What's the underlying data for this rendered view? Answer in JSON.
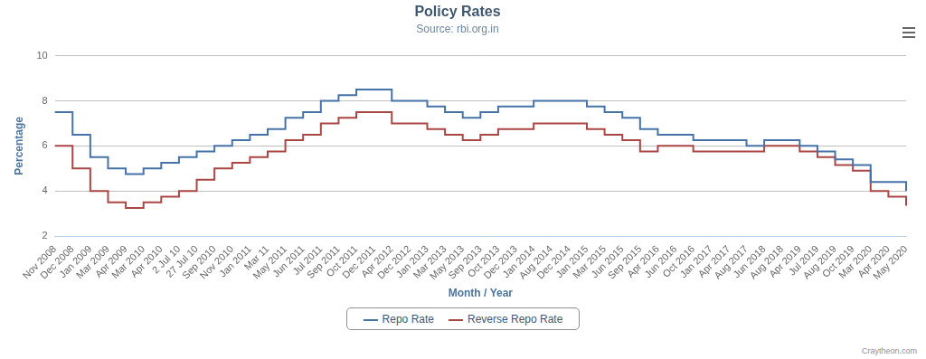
{
  "chart_data": {
    "type": "line",
    "title": "Policy Rates",
    "subtitle": "Source: rbi.org.in",
    "x_label": "Month / Year",
    "y_label": "Percentage",
    "credits": "Craytheon.com",
    "categories": [
      "Nov 2008",
      "Dec 2008",
      "Jan 2009",
      "Mar 2009",
      "Apr 2009",
      "Mar 2010",
      "Apr 2010",
      "2 Jul 10",
      "27 Jul 10",
      "Sep 2010",
      "Nov 2010",
      "Jan 2011",
      "Mar 11",
      "May 2011",
      "Jun 2011",
      "Jul 2011",
      "Sep 2011",
      "Oct 2011",
      "Dec 2011",
      "Apr 2012",
      "Dec 2012",
      "Jan 2013",
      "Mar 2013",
      "May 2013",
      "Sep 2013",
      "Oct 2013",
      "Dec 2013",
      "Jan 2014",
      "Aug 2014",
      "Dec 2014",
      "Jan 2015",
      "Mar 2015",
      "Jun 2015",
      "Sep 2015",
      "Apr 2016",
      "Jun 2016",
      "Oct 2016",
      "Jan 2017",
      "Apr 2017",
      "Aug 2017",
      "Jun 2018",
      "Aug 2018",
      "Apr 2019",
      "Jul 2019",
      "Aug 2019",
      "Oct 2019",
      "Mar 2020",
      "Apr 2020",
      "May 2020"
    ],
    "series": [
      {
        "name": "Repo Rate",
        "color": "#4572A7",
        "values": [
          7.5,
          6.5,
          5.5,
          5.0,
          4.75,
          5.0,
          5.25,
          5.5,
          5.75,
          6.0,
          6.25,
          6.5,
          6.75,
          7.25,
          7.5,
          8.0,
          8.25,
          8.5,
          8.5,
          8.0,
          8.0,
          7.75,
          7.5,
          7.25,
          7.5,
          7.75,
          7.75,
          8.0,
          8.0,
          8.0,
          7.75,
          7.5,
          7.25,
          6.75,
          6.5,
          6.5,
          6.25,
          6.25,
          6.25,
          6.0,
          6.25,
          6.25,
          6.0,
          5.75,
          5.4,
          5.15,
          4.4,
          4.4,
          4.0
        ]
      },
      {
        "name": "Reverse Repo Rate",
        "color": "#AA4643",
        "values": [
          6.0,
          5.0,
          4.0,
          3.5,
          3.25,
          3.5,
          3.75,
          4.0,
          4.5,
          5.0,
          5.25,
          5.5,
          5.75,
          6.25,
          6.5,
          7.0,
          7.25,
          7.5,
          7.5,
          7.0,
          7.0,
          6.75,
          6.5,
          6.25,
          6.5,
          6.75,
          6.75,
          7.0,
          7.0,
          7.0,
          6.75,
          6.5,
          6.25,
          5.75,
          6.0,
          6.0,
          5.75,
          5.75,
          5.75,
          5.75,
          6.0,
          6.0,
          5.75,
          5.5,
          5.15,
          4.9,
          4.0,
          3.75,
          3.35
        ]
      }
    ],
    "line_style": "step",
    "ylim": [
      2,
      10
    ],
    "yticks": [
      2,
      4,
      6,
      8,
      10
    ],
    "grid": true,
    "legend": "bottom"
  }
}
